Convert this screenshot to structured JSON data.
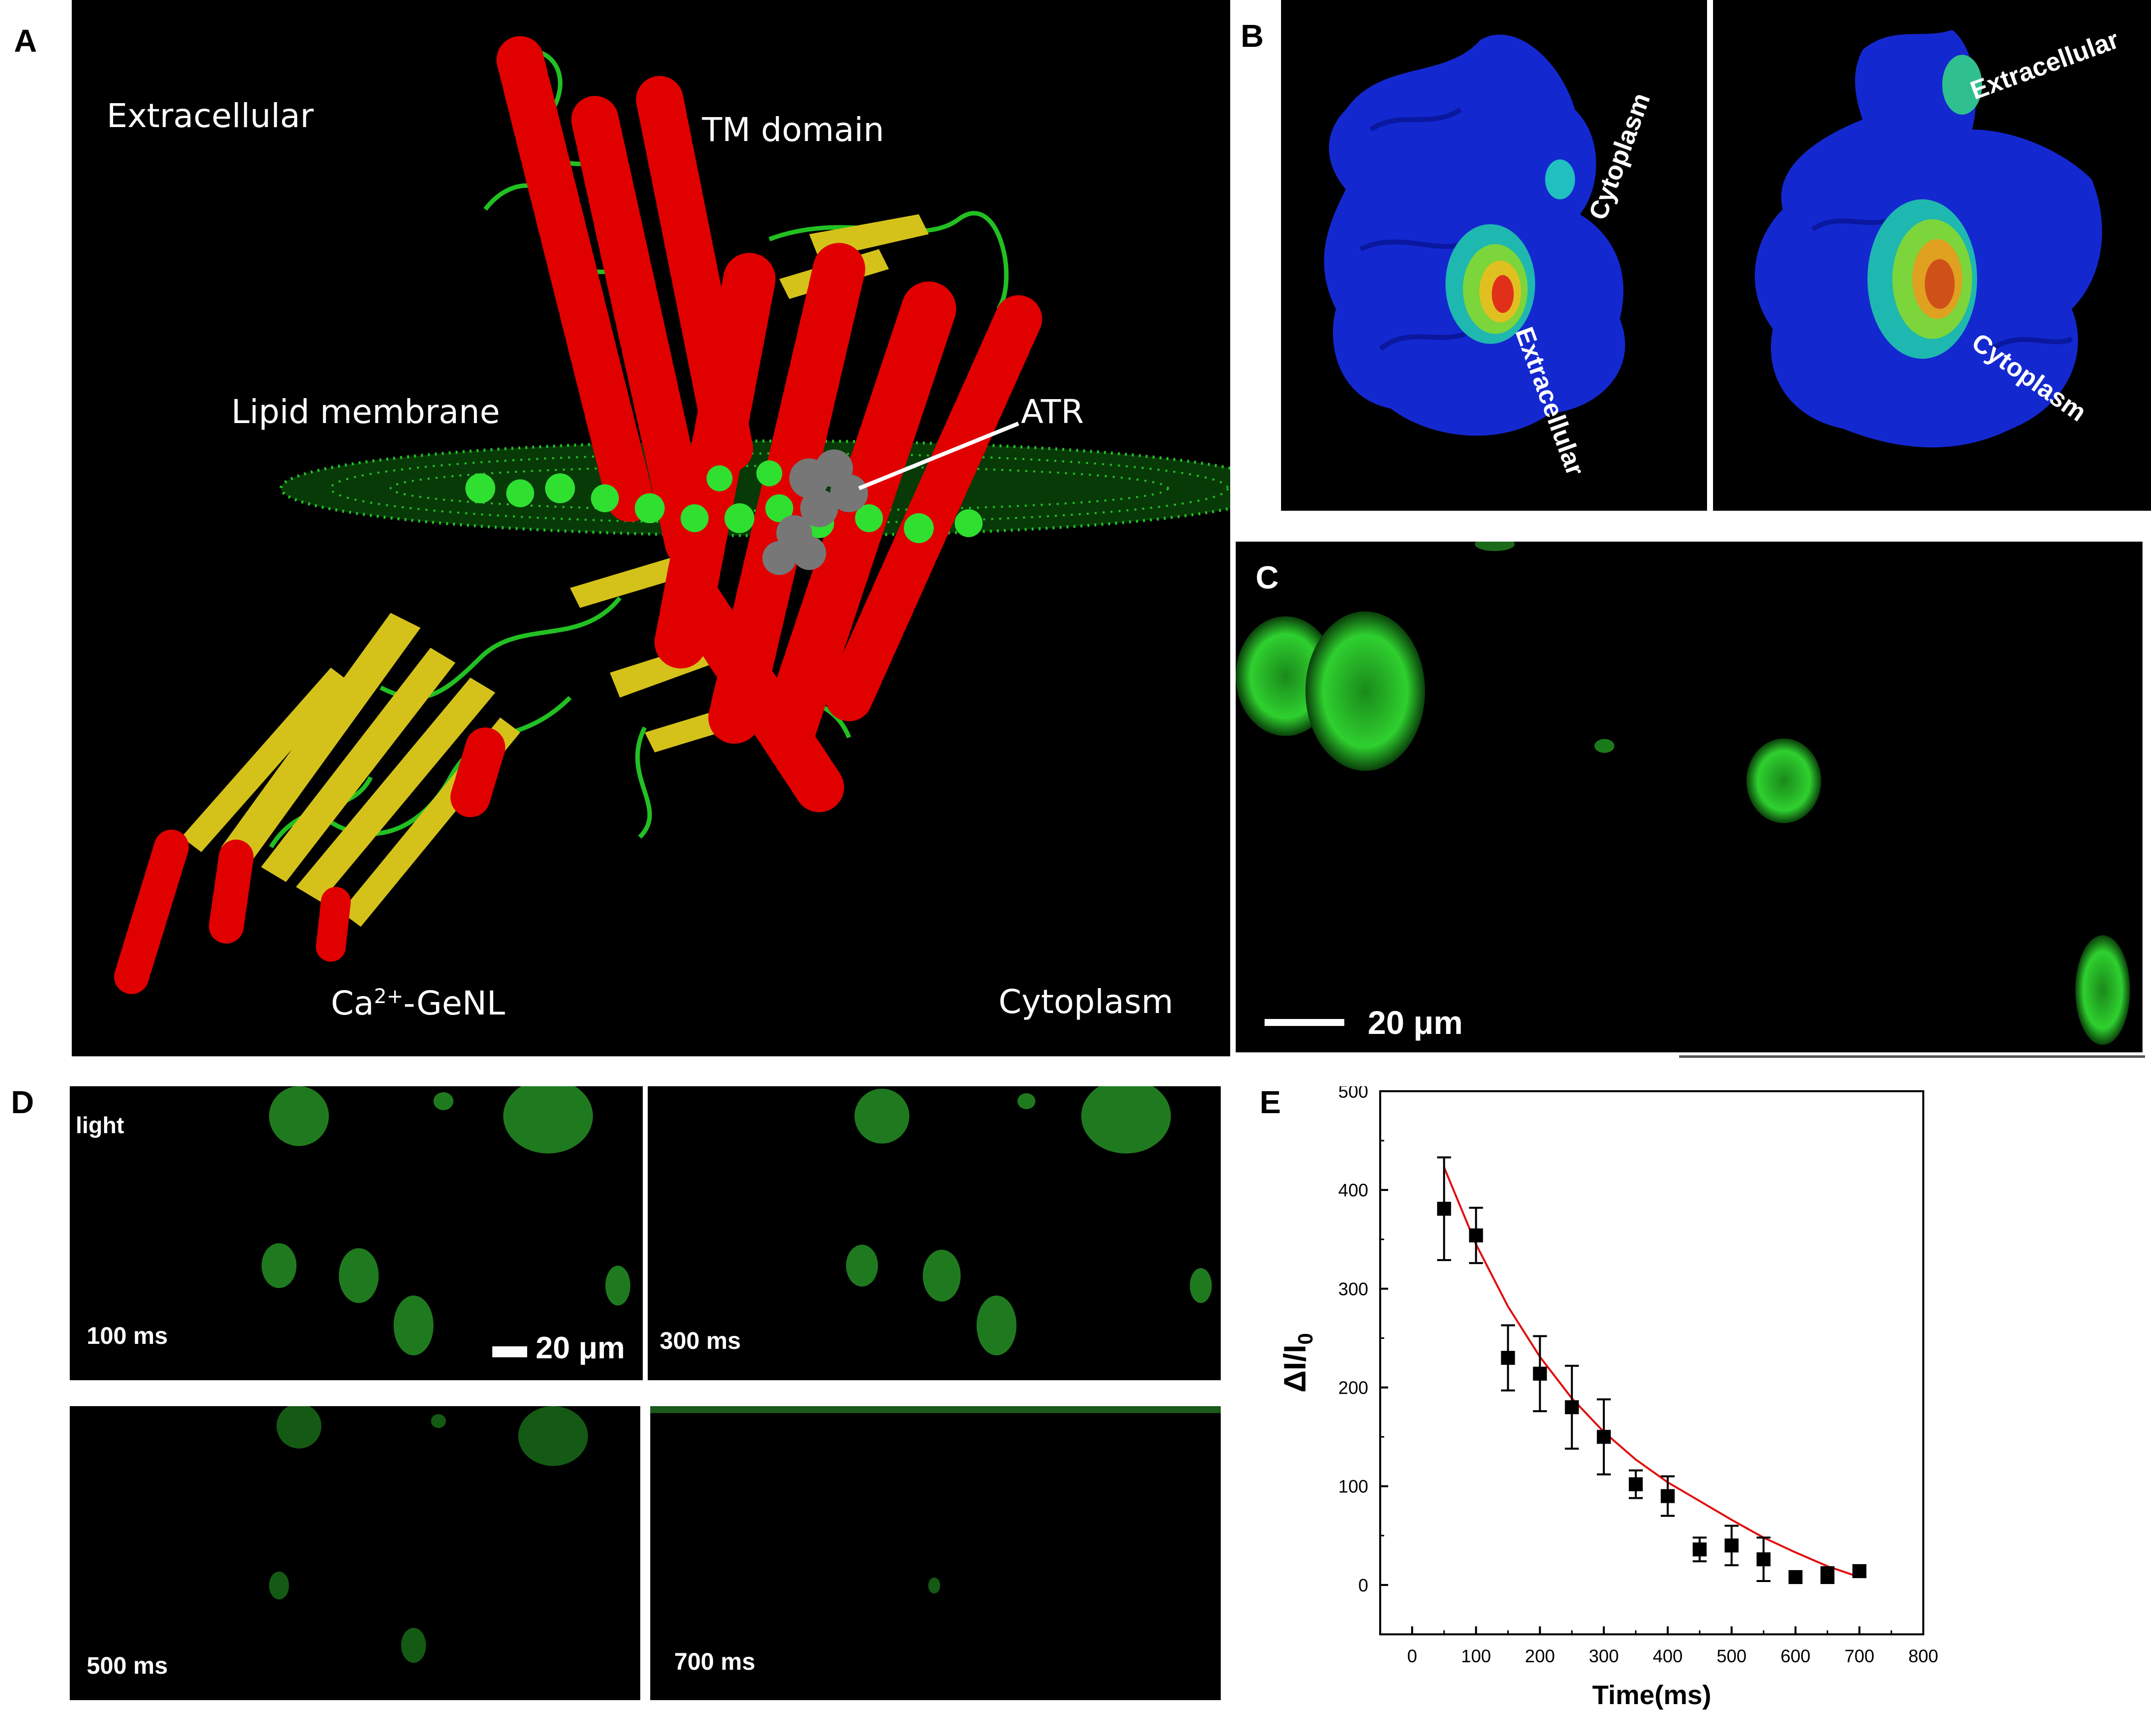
{
  "panels": {
    "a": {
      "label": "A",
      "extracellular": "Extracellular",
      "tm_domain": "TM domain",
      "lipid_membrane": "Lipid membrane",
      "atr": "ATR",
      "ca_prefix": "Ca",
      "ca_sup": "2+",
      "ca_suffix": "-GeNL",
      "cytoplasm": "Cytoplasm"
    },
    "b": {
      "label": "B",
      "left_top": "Cytoplasm",
      "left_bottom": "Extracellular",
      "right_top": "Extracellular",
      "right_bottom": "Cytoplasm"
    },
    "c": {
      "label": "C",
      "scale": "20 μm"
    },
    "d": {
      "label": "D",
      "light": "light",
      "scale": "20 μm",
      "t1": "100 ms",
      "t2": "300 ms",
      "t3": "500 ms",
      "t4": "700 ms"
    },
    "e": {
      "label": "E"
    }
  },
  "colors": {
    "helix": "#e00000",
    "sheet": "#d4c21a",
    "loop": "#22c022",
    "surface": "#1020d0",
    "fluor": "#2fd02f",
    "fit": "#e01010"
  },
  "chart_data": {
    "type": "scatter",
    "xlabel": "Time(ms)",
    "ylabel_main": "ΔI/I",
    "ylabel_sub": "0",
    "xlim": [
      -50,
      800
    ],
    "ylim": [
      -50,
      500
    ],
    "xticks": [
      0,
      100,
      200,
      300,
      400,
      500,
      600,
      700,
      800
    ],
    "yticks": [
      0,
      100,
      200,
      300,
      400,
      500
    ],
    "series": [
      {
        "x": [
          50,
          100,
          150,
          200,
          250,
          300,
          350,
          400,
          450,
          500,
          550,
          600,
          650,
          700
        ],
        "y": [
          381,
          354,
          230,
          214,
          180,
          150,
          102,
          90,
          36,
          40,
          26,
          8,
          10,
          14
        ],
        "err": [
          52,
          28,
          33,
          38,
          42,
          38,
          14,
          20,
          12,
          20,
          22,
          5,
          8,
          6
        ]
      }
    ],
    "fit": {
      "x": [
        50,
        100,
        150,
        200,
        250,
        300,
        350,
        400,
        450,
        500,
        550,
        600,
        650,
        700
      ],
      "y": [
        423,
        345,
        282,
        231,
        189,
        155,
        127,
        104,
        85,
        66,
        48,
        33,
        19,
        8
      ]
    }
  }
}
